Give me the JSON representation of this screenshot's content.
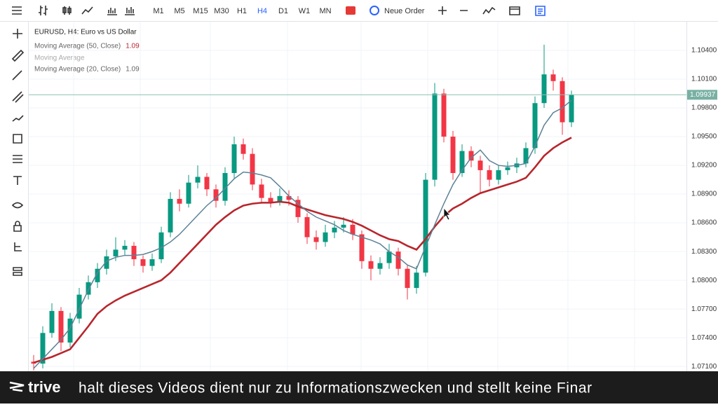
{
  "toolbar": {
    "timeframes": [
      "M1",
      "M5",
      "M15",
      "M30",
      "H1",
      "H4",
      "D1",
      "W1",
      "MN"
    ],
    "active": "H4",
    "order_button": "Neue Order"
  },
  "chart": {
    "type": "candlestick",
    "title": "EURUSD, H4: Euro vs US Dollar",
    "up_color": "#089981",
    "down_color": "#f23645",
    "ylim": [
      1.0705,
      1.107
    ],
    "yticks": [
      {
        "value": 1.104,
        "label": "1.10400"
      },
      {
        "value": 1.101,
        "label": "1.10100"
      },
      {
        "value": 1.098,
        "label": "1.09800"
      },
      {
        "value": 1.095,
        "label": "1.09500"
      },
      {
        "value": 1.092,
        "label": "1.09200"
      },
      {
        "value": 1.089,
        "label": "1.08900"
      },
      {
        "value": 1.086,
        "label": "1.08600"
      },
      {
        "value": 1.083,
        "label": "1.08300"
      },
      {
        "value": 1.08,
        "label": "1.08000"
      },
      {
        "value": 1.077,
        "label": "1.07700"
      },
      {
        "value": 1.074,
        "label": "1.07400"
      },
      {
        "value": 1.071,
        "label": "1.07100"
      }
    ],
    "current_price": {
      "value": 1.09937,
      "label": "1.09937"
    },
    "hidden_indicator": "Moving Average",
    "candles": [
      [
        1.0715,
        1.0722,
        1.0706,
        1.0713
      ],
      [
        1.0713,
        1.0752,
        1.0708,
        1.0745
      ],
      [
        1.0745,
        1.0776,
        1.074,
        1.0768
      ],
      [
        1.0768,
        1.0772,
        1.0726,
        1.0735
      ],
      [
        1.0735,
        1.0766,
        1.073,
        1.076
      ],
      [
        1.076,
        1.0792,
        1.0755,
        1.0785
      ],
      [
        1.0785,
        1.0805,
        1.078,
        1.0798
      ],
      [
        1.0798,
        1.0818,
        1.0792,
        1.0812
      ],
      [
        1.0812,
        1.0832,
        1.0806,
        1.0825
      ],
      [
        1.0825,
        1.0845,
        1.082,
        1.0832
      ],
      [
        1.0832,
        1.0842,
        1.0826,
        1.0836
      ],
      [
        1.0836,
        1.084,
        1.0815,
        1.0822
      ],
      [
        1.0822,
        1.0826,
        1.0808,
        1.0815
      ],
      [
        1.0815,
        1.0828,
        1.081,
        1.0822
      ],
      [
        1.0822,
        1.0856,
        1.0818,
        1.085
      ],
      [
        1.085,
        1.0892,
        1.0845,
        1.0885
      ],
      [
        1.0885,
        1.0895,
        1.0872,
        1.088
      ],
      [
        1.088,
        1.091,
        1.0876,
        1.0902
      ],
      [
        1.0902,
        1.092,
        1.0896,
        1.0908
      ],
      [
        1.0908,
        1.0912,
        1.0888,
        1.0895
      ],
      [
        1.0895,
        1.09,
        1.0876,
        1.0883
      ],
      [
        1.0883,
        1.0918,
        1.0878,
        1.0912
      ],
      [
        1.0912,
        1.095,
        1.0906,
        1.0942
      ],
      [
        1.0942,
        1.0948,
        1.0926,
        1.0932
      ],
      [
        1.0932,
        1.0938,
        1.0894,
        1.09
      ],
      [
        1.09,
        1.0906,
        1.088,
        1.0886
      ],
      [
        1.0886,
        1.0892,
        1.0876,
        1.0882
      ],
      [
        1.0882,
        1.0896,
        1.0878,
        1.0888
      ],
      [
        1.0888,
        1.0894,
        1.0878,
        1.0884
      ],
      [
        1.0884,
        1.0888,
        1.086,
        1.0866
      ],
      [
        1.0866,
        1.087,
        1.0838,
        1.0845
      ],
      [
        1.0845,
        1.0852,
        1.0832,
        1.084
      ],
      [
        1.084,
        1.0858,
        1.0835,
        1.085
      ],
      [
        1.085,
        1.0862,
        1.0844,
        1.0855
      ],
      [
        1.0855,
        1.0866,
        1.085,
        1.0858
      ],
      [
        1.0858,
        1.0864,
        1.0842,
        1.0848
      ],
      [
        1.0848,
        1.0852,
        1.0812,
        1.082
      ],
      [
        1.082,
        1.0826,
        1.08,
        1.0812
      ],
      [
        1.0812,
        1.0824,
        1.0806,
        1.0818
      ],
      [
        1.0818,
        1.0838,
        1.0812,
        1.083
      ],
      [
        1.083,
        1.0834,
        1.0805,
        1.0812
      ],
      [
        1.0812,
        1.0816,
        1.078,
        1.0792
      ],
      [
        1.0792,
        1.0815,
        1.0786,
        1.0808
      ],
      [
        1.0808,
        1.0912,
        1.0804,
        1.0905
      ],
      [
        1.0905,
        1.1006,
        1.0898,
        1.0995
      ],
      [
        1.0995,
        1.1,
        1.0944,
        1.095
      ],
      [
        1.095,
        1.0956,
        1.0905,
        1.0912
      ],
      [
        1.0912,
        1.0942,
        1.0908,
        1.0935
      ],
      [
        1.0935,
        1.094,
        1.0918,
        1.0925
      ],
      [
        1.0925,
        1.093,
        1.089,
        1.0915
      ],
      [
        1.0915,
        1.092,
        1.0898,
        1.0905
      ],
      [
        1.0905,
        1.092,
        1.09,
        1.0915
      ],
      [
        1.0915,
        1.0924,
        1.091,
        1.0918
      ],
      [
        1.0918,
        1.0928,
        1.0912,
        1.0922
      ],
      [
        1.0922,
        1.0944,
        1.0918,
        1.0938
      ],
      [
        1.0938,
        1.0992,
        1.0932,
        1.0985
      ],
      [
        1.0985,
        1.1046,
        1.098,
        1.1015
      ],
      [
        1.1015,
        1.102,
        1.0998,
        1.1008
      ],
      [
        1.1008,
        1.1012,
        1.0952,
        1.0965
      ],
      [
        1.0965,
        1.0998,
        1.096,
        1.09937
      ]
    ],
    "series": [
      {
        "name": "Moving Average (50, Close)",
        "value": 1.09,
        "color": "#b8262c",
        "values": [
          1.0714,
          1.0717,
          1.072,
          1.0724,
          1.0728,
          1.074,
          1.0752,
          1.0765,
          1.0773,
          1.0779,
          1.0784,
          1.0788,
          1.0792,
          1.0796,
          1.08,
          1.0808,
          1.0818,
          1.0828,
          1.0838,
          1.0848,
          1.0858,
          1.0866,
          1.0873,
          1.0878,
          1.088,
          1.0881,
          1.0881,
          1.0882,
          1.0881,
          1.0877,
          1.0874,
          1.0871,
          1.0868,
          1.0866,
          1.0864,
          1.0861,
          1.0857,
          1.0852,
          1.0847,
          1.0843,
          1.0841,
          1.0836,
          1.0832,
          1.0843,
          1.0856,
          1.0867,
          1.0875,
          1.088,
          1.0886,
          1.0891,
          1.0894,
          1.0897,
          1.09,
          1.0903,
          1.0907,
          1.0918,
          1.093,
          1.0938,
          1.0944,
          1.0949
        ]
      },
      {
        "name": "Moving Average (20, Close)",
        "value": 1.09,
        "color": "#5d8297",
        "values": [
          1.0708,
          1.0718,
          1.0728,
          1.0738,
          1.075,
          1.077,
          1.079,
          1.0808,
          1.082,
          1.0824,
          1.0826,
          1.0826,
          1.0827,
          1.083,
          1.0834,
          1.084,
          1.0848,
          1.0858,
          1.0868,
          1.0878,
          1.0886,
          1.0896,
          1.0906,
          1.0913,
          1.0912,
          1.091,
          1.0907,
          1.0898,
          1.0888,
          1.088,
          1.0872,
          1.0866,
          1.0862,
          1.0858,
          1.0852,
          1.0848,
          1.0845,
          1.0842,
          1.0838,
          1.083,
          1.0824,
          1.0816,
          1.0812,
          1.0835,
          1.0858,
          1.088,
          1.09,
          1.0915,
          1.0928,
          1.0936,
          1.0925,
          1.092,
          1.0919,
          1.092,
          1.0922,
          1.094,
          1.0962,
          1.0975,
          1.098,
          1.0988
        ]
      }
    ]
  },
  "caption_bar": {
    "logo": "trive",
    "text": "halt dieses Videos dient nur zu Informationszwecken und stellt keine Finar"
  }
}
